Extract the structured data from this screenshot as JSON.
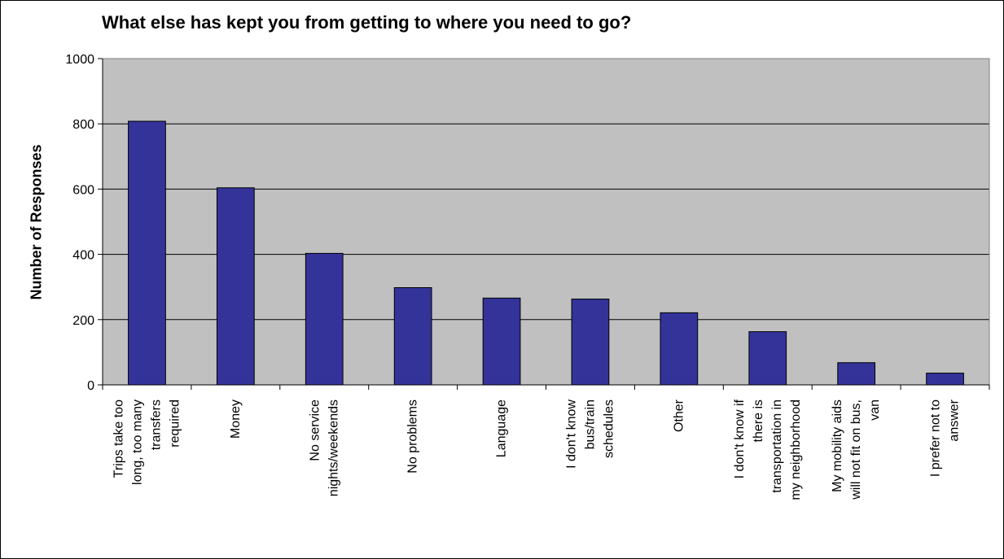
{
  "chart_data": {
    "type": "bar",
    "title": "What else has kept you from getting to where you need to go?",
    "xlabel": "",
    "ylabel": "Number of Responses",
    "ylim": [
      0,
      1000
    ],
    "yticks": [
      0,
      200,
      400,
      600,
      800,
      1000
    ],
    "grid": true,
    "legend": "none",
    "colors": {
      "bar": "#333399",
      "plot_area": "#c0c0c0",
      "gridline": "#000000"
    },
    "categories": [
      [
        "Trips take too",
        "long, too many",
        "transfers",
        "required"
      ],
      [
        "Money"
      ],
      [
        "No service",
        "nights/weekends"
      ],
      [
        "No problems"
      ],
      [
        "Language"
      ],
      [
        "I don't know",
        "bus/train",
        "schedules"
      ],
      [
        "Other"
      ],
      [
        "I don't know if",
        "there is",
        "transportation in",
        "my neighborhood"
      ],
      [
        "My mobility aids",
        "will not fit on bus,",
        "van"
      ],
      [
        "I prefer not to",
        "answer"
      ]
    ],
    "values": [
      808,
      604,
      403,
      298,
      266,
      263,
      221,
      163,
      68,
      36
    ]
  }
}
